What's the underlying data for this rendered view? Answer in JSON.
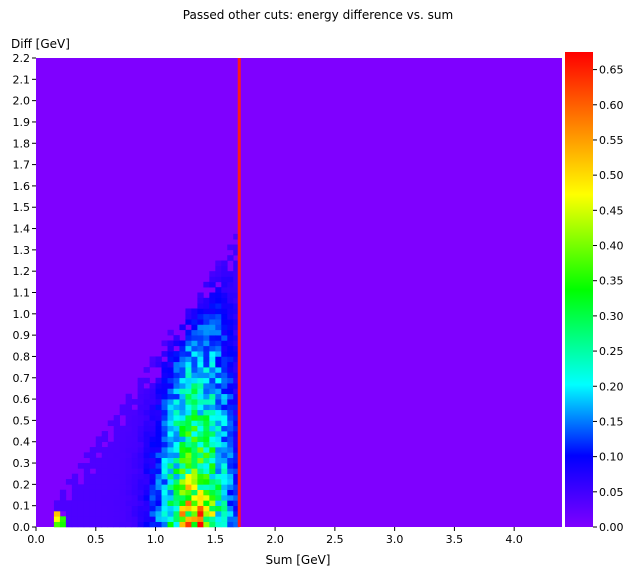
{
  "chart_data": {
    "type": "heatmap",
    "title": "Passed other cuts: energy difference vs. sum",
    "xlabel": "Sum [GeV]",
    "ylabel": "Diff [GeV]",
    "xlim": [
      0.0,
      4.4
    ],
    "ylim": [
      0.0,
      2.2
    ],
    "x_ticks": [
      "0.0",
      "0.5",
      "1.0",
      "1.5",
      "2.0",
      "2.5",
      "3.0",
      "3.5",
      "4.0"
    ],
    "y_ticks": [
      "0.0",
      "0.1",
      "0.2",
      "0.3",
      "0.4",
      "0.5",
      "0.6",
      "0.7",
      "0.8",
      "0.9",
      "1.0",
      "1.1",
      "1.2",
      "1.3",
      "1.4",
      "1.5",
      "1.6",
      "1.7",
      "1.8",
      "1.9",
      "2.0",
      "2.1",
      "2.2"
    ],
    "colorbar": {
      "range": [
        0.0,
        0.675
      ],
      "ticks": [
        "0.00",
        "0.05",
        "0.10",
        "0.15",
        "0.20",
        "0.25",
        "0.30",
        "0.35",
        "0.40",
        "0.45",
        "0.50",
        "0.55",
        "0.60",
        "0.65"
      ],
      "colormap": "rainbow (violet → blue → cyan → green → yellow → orange → red)"
    },
    "background_color": "#7f00ff",
    "cut_line": {
      "x": 1.7,
      "color": "#ff1a1a"
    },
    "bins": {
      "x_bin_width": 0.05,
      "y_bin_width": 0.025,
      "populated_region": "triangle: 0.15 ≤ Sum ≤ 1.65, 0 ≤ Diff ≤ about 0.8 × Sum",
      "peak": {
        "sum": 1.35,
        "diff": 0.05,
        "value": 0.66
      },
      "low_sum_spot": {
        "sum": 0.17,
        "diff": 0.01,
        "value": 0.55
      }
    }
  }
}
